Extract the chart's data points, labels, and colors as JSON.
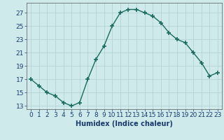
{
  "xlabel": "Humidex (Indice chaleur)",
  "ylabel": "",
  "x": [
    0,
    1,
    2,
    3,
    4,
    5,
    6,
    7,
    8,
    9,
    10,
    11,
    12,
    13,
    14,
    15,
    16,
    17,
    18,
    19,
    20,
    21,
    22,
    23
  ],
  "y": [
    17,
    16,
    15,
    14.5,
    13.5,
    13,
    13.5,
    17,
    20,
    22,
    25,
    27,
    27.5,
    27.5,
    27,
    26.5,
    25.5,
    24,
    23,
    22.5,
    21,
    19.5,
    17.5,
    18
  ],
  "xlim": [
    -0.5,
    23.5
  ],
  "ylim": [
    12.5,
    28.5
  ],
  "yticks": [
    13,
    15,
    17,
    19,
    21,
    23,
    25,
    27
  ],
  "xticks": [
    0,
    1,
    2,
    3,
    4,
    5,
    6,
    7,
    8,
    9,
    10,
    11,
    12,
    13,
    14,
    15,
    16,
    17,
    18,
    19,
    20,
    21,
    22,
    23
  ],
  "line_color": "#1a6b5e",
  "marker": "+",
  "marker_size": 4,
  "marker_linewidth": 1.2,
  "line_width": 1.0,
  "bg_color": "#ceeaea",
  "grid_color": "#b0cfcf",
  "label_fontsize": 7,
  "tick_fontsize": 6.5,
  "tick_color": "#1a3a6e",
  "xlabel_color": "#1a3a6e"
}
